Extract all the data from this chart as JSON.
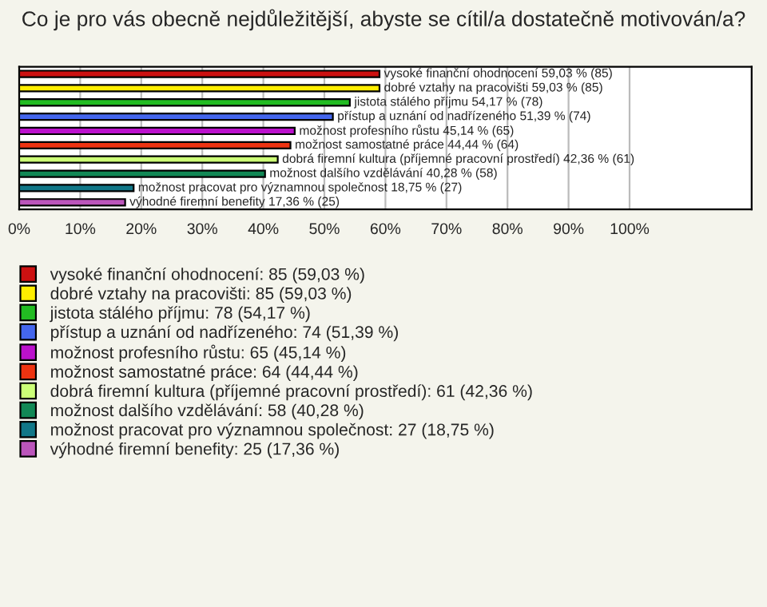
{
  "chart_data": {
    "type": "bar",
    "orientation": "horizontal",
    "title": "Co je pro vás obecně nejdůležitější, abyste se cítil/a dostatečně motivován/a?",
    "categories": [
      null,
      null,
      null,
      null,
      null,
      null,
      null,
      null,
      null,
      null
    ],
    "series": [
      {
        "name": "vysoké finanční ohodnocení: 85 (59,03 %)",
        "color": "#cc1111",
        "values": [
          59.03,
          null,
          null,
          null,
          null,
          null,
          null,
          null,
          null,
          null
        ],
        "value_labels": [
          "vysoké finanční ohodnocení 59,03 % (85)",
          null,
          null,
          null,
          null,
          null,
          null,
          null,
          null,
          null
        ]
      },
      {
        "name": "dobré vztahy na pracovišti: 85 (59,03 %)",
        "color": "#ffee00",
        "values": [
          null,
          59.03,
          null,
          null,
          null,
          null,
          null,
          null,
          null,
          null
        ],
        "value_labels": [
          null,
          "dobré vztahy na pracovišti 59,03 % (85)",
          null,
          null,
          null,
          null,
          null,
          null,
          null,
          null
        ]
      },
      {
        "name": "jistota stálého příjmu: 78 (54,17 %)",
        "color": "#22bb22",
        "values": [
          null,
          null,
          54.17,
          null,
          null,
          null,
          null,
          null,
          null,
          null
        ],
        "value_labels": [
          null,
          null,
          "jistota stálého příjmu 54,17 % (78)",
          null,
          null,
          null,
          null,
          null,
          null,
          null
        ]
      },
      {
        "name": "přístup a uznání od nadřízeného: 74 (51,39 %)",
        "color": "#4466ee",
        "values": [
          null,
          null,
          null,
          51.39,
          null,
          null,
          null,
          null,
          null,
          null
        ],
        "value_labels": [
          null,
          null,
          null,
          "přístup a uznání od nadřízeného 51,39 % (74)",
          null,
          null,
          null,
          null,
          null,
          null
        ]
      },
      {
        "name": "možnost profesního růstu: 65 (45,14 %)",
        "color": "#bb11cc",
        "values": [
          null,
          null,
          null,
          null,
          45.14,
          null,
          null,
          null,
          null,
          null
        ],
        "value_labels": [
          null,
          null,
          null,
          null,
          "možnost profesního růstu 45,14 % (65)",
          null,
          null,
          null,
          null,
          null
        ]
      },
      {
        "name": "možnost samostatné práce: 64 (44,44 %)",
        "color": "#ee3311",
        "values": [
          null,
          null,
          null,
          null,
          null,
          44.44,
          null,
          null,
          null,
          null
        ],
        "value_labels": [
          null,
          null,
          null,
          null,
          null,
          "možnost samostatné práce 44,44 % (64)",
          null,
          null,
          null,
          null
        ]
      },
      {
        "name": "dobrá firemní kultura (příjemné pracovní prostředí): 61 (42,36 %)",
        "color": "#ccff77",
        "values": [
          null,
          null,
          null,
          null,
          null,
          null,
          42.36,
          null,
          null,
          null
        ],
        "value_labels": [
          null,
          null,
          null,
          null,
          null,
          null,
          "dobrá firemní kultura (příjemné pracovní prostředí) 42,36 % (61)",
          null,
          null,
          null
        ]
      },
      {
        "name": "možnost dalšího vzdělávání: 58 (40,28 %)",
        "color": "#118855",
        "values": [
          null,
          null,
          null,
          null,
          null,
          null,
          null,
          40.28,
          null,
          null
        ],
        "value_labels": [
          null,
          null,
          null,
          null,
          null,
          null,
          null,
          "možnost dalšího vzdělávání 40,28 % (58)",
          null,
          null
        ]
      },
      {
        "name": "možnost pracovat pro významnou společnost: 27 (18,75 %)",
        "color": "#117788",
        "values": [
          null,
          null,
          null,
          null,
          null,
          null,
          null,
          null,
          18.75,
          null
        ],
        "value_labels": [
          null,
          null,
          null,
          null,
          null,
          null,
          null,
          null,
          "možnost pracovat pro významnou společnost 18,75 % (27)",
          null
        ]
      },
      {
        "name": "výhodné firemní benefity: 25 (17,36 %)",
        "color": "#bb55bb",
        "values": [
          null,
          null,
          null,
          null,
          null,
          null,
          null,
          null,
          null,
          17.36
        ],
        "value_labels": [
          null,
          null,
          null,
          null,
          null,
          null,
          null,
          null,
          null,
          "výhodné firemní benefity 17,36 % (25)"
        ]
      }
    ],
    "xlim": [
      0,
      120
    ],
    "xticks": [
      {
        "value": 0,
        "label": "0%"
      },
      {
        "value": 10,
        "label": "10%"
      },
      {
        "value": 20,
        "label": "20%"
      },
      {
        "value": 30,
        "label": "30%"
      },
      {
        "value": 40,
        "label": "40%"
      },
      {
        "value": 50,
        "label": "50%"
      },
      {
        "value": 60,
        "label": "60%"
      },
      {
        "value": 70,
        "label": "70%"
      },
      {
        "value": 80,
        "label": "80%"
      },
      {
        "value": 90,
        "label": "90%"
      },
      {
        "value": 100,
        "label": "100%"
      }
    ],
    "grid": "x",
    "legend": "bottom"
  }
}
